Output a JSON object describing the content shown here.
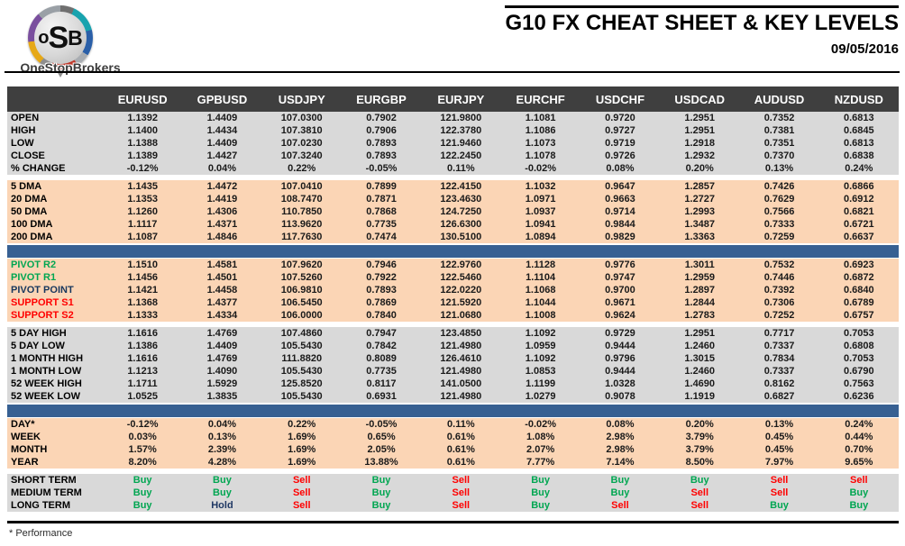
{
  "logo": {
    "letters": [
      "o",
      "S",
      "B"
    ],
    "brand": "OneStopBrokers"
  },
  "header": {
    "title": "G10 FX CHEAT SHEET & KEY LEVELS",
    "date": "09/05/2016"
  },
  "footnote": "* Performance",
  "colors": {
    "header_bg": "#3F3F3F",
    "section_gray": "#D9D9D9",
    "section_orange": "#FBD5B5",
    "divider_blue": "#376092",
    "buy_green": "#00A651",
    "sell_red": "#FF0000",
    "hold_navy": "#1F3864",
    "pivot_green": "#00A651",
    "pivot_navy": "#17365D",
    "support_red": "#FF0000"
  },
  "table": {
    "columns": [
      "EURUSD",
      "GPBUSD",
      "USDJPY",
      "EURGBP",
      "EURJPY",
      "EURCHF",
      "USDCHF",
      "USDCAD",
      "AUDUSD",
      "NZDUSD"
    ],
    "sections": [
      {
        "id": "ohlc",
        "bg_key": "section_gray",
        "after": "gap",
        "rows": [
          {
            "label": "OPEN",
            "values": [
              "1.1392",
              "1.4409",
              "107.0300",
              "0.7902",
              "121.9800",
              "1.1081",
              "0.9720",
              "1.2951",
              "0.7352",
              "0.6813"
            ]
          },
          {
            "label": "HIGH",
            "values": [
              "1.1400",
              "1.4434",
              "107.3810",
              "0.7906",
              "122.3780",
              "1.1086",
              "0.9727",
              "1.2951",
              "0.7381",
              "0.6845"
            ]
          },
          {
            "label": "LOW",
            "values": [
              "1.1388",
              "1.4409",
              "107.0230",
              "0.7893",
              "121.9460",
              "1.1073",
              "0.9719",
              "1.2918",
              "0.7351",
              "0.6813"
            ]
          },
          {
            "label": "CLOSE",
            "values": [
              "1.1389",
              "1.4427",
              "107.3240",
              "0.7893",
              "122.2450",
              "1.1078",
              "0.9726",
              "1.2932",
              "0.7370",
              "0.6838"
            ]
          },
          {
            "label": "% CHANGE",
            "values": [
              "-0.12%",
              "0.04%",
              "0.22%",
              "-0.05%",
              "0.11%",
              "-0.02%",
              "0.08%",
              "0.20%",
              "0.13%",
              "0.24%"
            ]
          }
        ]
      },
      {
        "id": "dma",
        "bg_key": "section_orange",
        "after": "blue",
        "rows": [
          {
            "label": "5 DMA",
            "values": [
              "1.1435",
              "1.4472",
              "107.0410",
              "0.7899",
              "122.4150",
              "1.1032",
              "0.9647",
              "1.2857",
              "0.7426",
              "0.6866"
            ]
          },
          {
            "label": "20 DMA",
            "values": [
              "1.1353",
              "1.4419",
              "108.7470",
              "0.7871",
              "123.4630",
              "1.0971",
              "0.9663",
              "1.2727",
              "0.7629",
              "0.6912"
            ]
          },
          {
            "label": "50 DMA",
            "values": [
              "1.1260",
              "1.4306",
              "110.7850",
              "0.7868",
              "124.7250",
              "1.0937",
              "0.9714",
              "1.2993",
              "0.7566",
              "0.6821"
            ]
          },
          {
            "label": "100 DMA",
            "values": [
              "1.1117",
              "1.4371",
              "113.9620",
              "0.7735",
              "126.6300",
              "1.0941",
              "0.9844",
              "1.3487",
              "0.7333",
              "0.6721"
            ]
          },
          {
            "label": "200 DMA",
            "values": [
              "1.1087",
              "1.4846",
              "117.7630",
              "0.7474",
              "130.5100",
              "1.0894",
              "0.9829",
              "1.3363",
              "0.7259",
              "0.6637"
            ]
          }
        ]
      },
      {
        "id": "pivots",
        "bg_key": "section_orange",
        "after": "gap",
        "rows": [
          {
            "label": "PIVOT R2",
            "label_color": "pivot_green",
            "values": [
              "1.1510",
              "1.4581",
              "107.9620",
              "0.7946",
              "122.9760",
              "1.1128",
              "0.9776",
              "1.3011",
              "0.7532",
              "0.6923"
            ]
          },
          {
            "label": "PIVOT R1",
            "label_color": "pivot_green",
            "values": [
              "1.1456",
              "1.4501",
              "107.5260",
              "0.7922",
              "122.5460",
              "1.1104",
              "0.9747",
              "1.2959",
              "0.7446",
              "0.6872"
            ]
          },
          {
            "label": "PIVOT POINT",
            "label_color": "pivot_navy",
            "values": [
              "1.1421",
              "1.4458",
              "106.9810",
              "0.7893",
              "122.0220",
              "1.1068",
              "0.9700",
              "1.2897",
              "0.7392",
              "0.6840"
            ]
          },
          {
            "label": "SUPPORT S1",
            "label_color": "support_red",
            "values": [
              "1.1368",
              "1.4377",
              "106.5450",
              "0.7869",
              "121.5920",
              "1.1044",
              "0.9671",
              "1.2844",
              "0.7306",
              "0.6789"
            ]
          },
          {
            "label": "SUPPORT S2",
            "label_color": "support_red",
            "values": [
              "1.1333",
              "1.4334",
              "106.0000",
              "0.7840",
              "121.0680",
              "1.1008",
              "0.9624",
              "1.2783",
              "0.7252",
              "0.6757"
            ]
          }
        ]
      },
      {
        "id": "ranges",
        "bg_key": "section_gray",
        "after": "blue",
        "rows": [
          {
            "label": "5 DAY HIGH",
            "values": [
              "1.1616",
              "1.4769",
              "107.4860",
              "0.7947",
              "123.4850",
              "1.1092",
              "0.9729",
              "1.2951",
              "0.7717",
              "0.7053"
            ]
          },
          {
            "label": "5 DAY LOW",
            "values": [
              "1.1386",
              "1.4409",
              "105.5430",
              "0.7842",
              "121.4980",
              "1.0959",
              "0.9444",
              "1.2460",
              "0.7337",
              "0.6808"
            ]
          },
          {
            "label": "1 MONTH HIGH",
            "values": [
              "1.1616",
              "1.4769",
              "111.8820",
              "0.8089",
              "126.4610",
              "1.1092",
              "0.9796",
              "1.3015",
              "0.7834",
              "0.7053"
            ]
          },
          {
            "label": "1 MONTH LOW",
            "values": [
              "1.1213",
              "1.4090",
              "105.5430",
              "0.7735",
              "121.4980",
              "1.0853",
              "0.9444",
              "1.2460",
              "0.7337",
              "0.6790"
            ]
          },
          {
            "label": "52 WEEK HIGH",
            "values": [
              "1.1711",
              "1.5929",
              "125.8520",
              "0.8117",
              "141.0500",
              "1.1199",
              "1.0328",
              "1.4690",
              "0.8162",
              "0.7563"
            ]
          },
          {
            "label": "52 WEEK LOW",
            "values": [
              "1.0525",
              "1.3835",
              "105.5430",
              "0.6931",
              "121.4980",
              "1.0279",
              "0.9078",
              "1.1919",
              "0.6827",
              "0.6236"
            ]
          }
        ]
      },
      {
        "id": "performance",
        "bg_key": "section_orange",
        "after": "gap",
        "rows": [
          {
            "label": "DAY*",
            "values": [
              "-0.12%",
              "0.04%",
              "0.22%",
              "-0.05%",
              "0.11%",
              "-0.02%",
              "0.08%",
              "0.20%",
              "0.13%",
              "0.24%"
            ]
          },
          {
            "label": "WEEK",
            "values": [
              "0.03%",
              "0.13%",
              "1.69%",
              "0.65%",
              "0.61%",
              "1.08%",
              "2.98%",
              "3.79%",
              "0.45%",
              "0.44%"
            ]
          },
          {
            "label": "MONTH",
            "values": [
              "1.57%",
              "2.39%",
              "1.69%",
              "2.05%",
              "0.61%",
              "2.07%",
              "2.98%",
              "3.79%",
              "0.45%",
              "0.70%"
            ]
          },
          {
            "label": "YEAR",
            "values": [
              "8.20%",
              "4.28%",
              "1.69%",
              "13.88%",
              "0.61%",
              "7.77%",
              "7.14%",
              "8.50%",
              "7.97%",
              "9.65%"
            ]
          }
        ]
      },
      {
        "id": "recommendations",
        "bg_key": "section_gray",
        "colorize": true,
        "rows": [
          {
            "label": "SHORT TERM",
            "values": [
              "Buy",
              "Buy",
              "Sell",
              "Buy",
              "Sell",
              "Buy",
              "Buy",
              "Buy",
              "Sell",
              "Sell"
            ]
          },
          {
            "label": "MEDIUM TERM",
            "values": [
              "Buy",
              "Buy",
              "Sell",
              "Buy",
              "Sell",
              "Buy",
              "Buy",
              "Sell",
              "Sell",
              "Buy"
            ]
          },
          {
            "label": "LONG TERM",
            "values": [
              "Buy",
              "Hold",
              "Sell",
              "Buy",
              "Sell",
              "Buy",
              "Sell",
              "Sell",
              "Buy",
              "Buy"
            ]
          }
        ]
      }
    ]
  }
}
